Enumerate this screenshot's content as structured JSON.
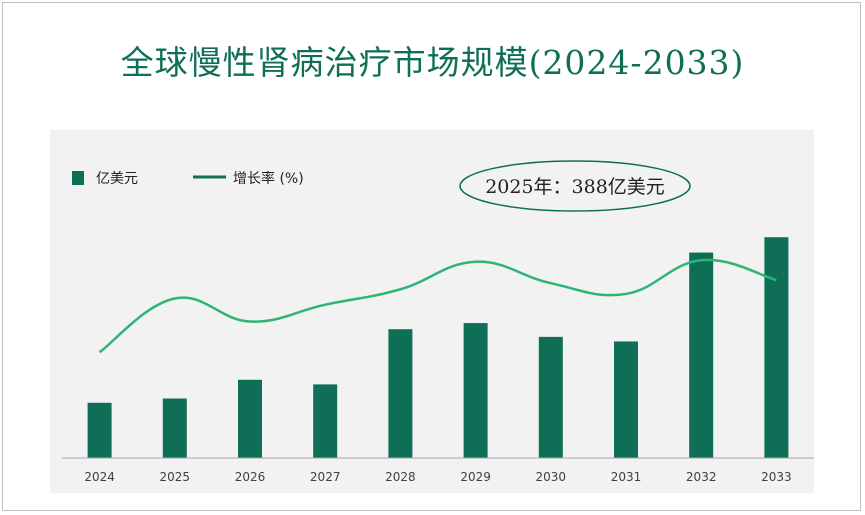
{
  "title": "全球慢性肾病治疗市场规模(2024-2033)",
  "colors": {
    "bar": "#0f6e56",
    "line": "#2cb573",
    "title": "#0f6e56",
    "panel": "#f2f2f2"
  },
  "legend": {
    "bar_label": "亿美元",
    "line_label": "增长率 (%)"
  },
  "annotation": "2025年：388亿美元",
  "chart_data": {
    "type": "bar",
    "categories": [
      "2024",
      "2025",
      "2026",
      "2027",
      "2028",
      "2029",
      "2030",
      "2031",
      "2032",
      "2033"
    ],
    "series": [
      {
        "name": "亿美元",
        "type": "bar",
        "values": [
          360,
          388,
          510,
          480,
          840,
          880,
          790,
          760,
          1340,
          1440
        ]
      },
      {
        "name": "增长率 (%)",
        "type": "line",
        "values": [
          6.9,
          10.4,
          8.9,
          10.0,
          11.0,
          12.8,
          11.4,
          10.7,
          12.9,
          11.6
        ]
      }
    ],
    "ylim_bar": [
      0,
      1500
    ],
    "ylim_line": [
      0,
      15
    ],
    "grid": false,
    "legend_position": "top-left"
  }
}
